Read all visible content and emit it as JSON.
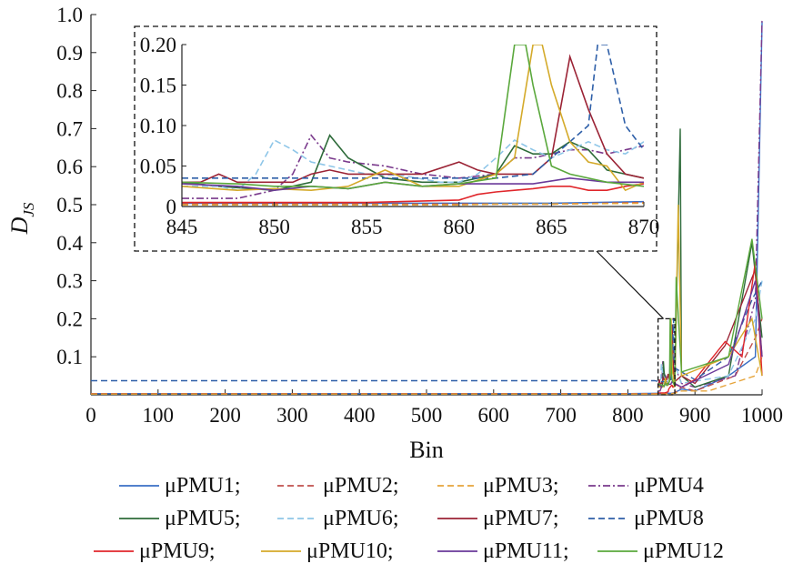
{
  "chart_data": {
    "type": "line",
    "title": "",
    "xlabel": "Bin",
    "ylabel": {
      "main": "D",
      "subscript": "JS"
    },
    "xlim": [
      0,
      1000
    ],
    "ylim": [
      0,
      1.0
    ],
    "xticks": [
      0,
      100,
      200,
      300,
      400,
      500,
      600,
      700,
      800,
      900,
      1000
    ],
    "yticks": [
      0.1,
      0.2,
      0.3,
      0.4,
      0.5,
      0.6,
      0.7,
      0.8,
      0.9,
      1.0
    ],
    "ytick_labels": [
      "0.1",
      "0.2",
      "0.3",
      "0.4",
      "0.5",
      "0.6",
      "0.7",
      "0.8",
      "0.9",
      "1.0"
    ],
    "grid": false,
    "legend_position": "bottom",
    "zoom_region": {
      "x": [
        845,
        870
      ],
      "y": [
        0,
        0.2
      ]
    },
    "series": [
      {
        "name": "μPMU1",
        "legend_label": "μPMU1;",
        "color": "#3a6fc4",
        "dash": "solid",
        "points": [
          [
            0,
            0.003
          ],
          [
            800,
            0.003
          ],
          [
            845,
            0.004
          ],
          [
            850,
            0.004
          ],
          [
            855,
            0.004
          ],
          [
            860,
            0.004
          ],
          [
            865,
            0.004
          ],
          [
            870,
            0.006
          ],
          [
            880,
            0.015
          ],
          [
            900,
            0.01
          ],
          [
            950,
            0.05
          ],
          [
            990,
            0.1
          ],
          [
            1000,
            0.98
          ]
        ]
      },
      {
        "name": "μPMU2",
        "legend_label": "μPMU2;",
        "color": "#c0504d",
        "dash": "dashed",
        "points": [
          [
            0,
            0.003
          ],
          [
            800,
            0.003
          ],
          [
            845,
            0.003
          ],
          [
            850,
            0.003
          ],
          [
            855,
            0.003
          ],
          [
            860,
            0.003
          ],
          [
            865,
            0.003
          ],
          [
            870,
            0.005
          ],
          [
            880,
            0.02
          ],
          [
            900,
            0.01
          ],
          [
            960,
            0.05
          ],
          [
            990,
            0.15
          ],
          [
            1000,
            0.2
          ]
        ]
      },
      {
        "name": "μPMU3",
        "legend_label": "μPMU3;",
        "color": "#e6a43a",
        "dash": "dashed",
        "points": [
          [
            0,
            0.002
          ],
          [
            800,
            0.002
          ],
          [
            845,
            0.002
          ],
          [
            855,
            0.002
          ],
          [
            860,
            0.002
          ],
          [
            862,
            0.003
          ],
          [
            865,
            0.003
          ],
          [
            870,
            0.004
          ],
          [
            880,
            0.01
          ],
          [
            920,
            0.01
          ],
          [
            990,
            0.05
          ],
          [
            1000,
            0.1
          ]
        ]
      },
      {
        "name": "μPMU4",
        "legend_label": "μPMU4",
        "color": "#7a3a8c",
        "dash": "dashdot",
        "points": [
          [
            845,
            0.01
          ],
          [
            848,
            0.01
          ],
          [
            850,
            0.02
          ],
          [
            851,
            0.04
          ],
          [
            852,
            0.088
          ],
          [
            853,
            0.06
          ],
          [
            854,
            0.055
          ],
          [
            856,
            0.05
          ],
          [
            858,
            0.04
          ],
          [
            860,
            0.035
          ],
          [
            862,
            0.04
          ],
          [
            863,
            0.06
          ],
          [
            864,
            0.06
          ],
          [
            865,
            0.065
          ],
          [
            866,
            0.07
          ],
          [
            867,
            0.07
          ],
          [
            868,
            0.065
          ],
          [
            869,
            0.07
          ],
          [
            870,
            0.075
          ],
          [
            880,
            0.03
          ],
          [
            900,
            0.02
          ],
          [
            960,
            0.05
          ],
          [
            990,
            0.25
          ],
          [
            1000,
            0.99
          ]
        ]
      },
      {
        "name": "μPMU5",
        "legend_label": "μPMU5;",
        "color": "#2e6b3a",
        "dash": "solid",
        "points": [
          [
            845,
            0.03
          ],
          [
            847,
            0.025
          ],
          [
            850,
            0.02
          ],
          [
            852,
            0.03
          ],
          [
            853,
            0.088
          ],
          [
            854,
            0.06
          ],
          [
            856,
            0.035
          ],
          [
            858,
            0.03
          ],
          [
            860,
            0.03
          ],
          [
            862,
            0.04
          ],
          [
            863,
            0.075
          ],
          [
            864,
            0.065
          ],
          [
            865,
            0.065
          ],
          [
            866,
            0.08
          ],
          [
            867,
            0.07
          ],
          [
            868,
            0.045
          ],
          [
            869,
            0.04
          ],
          [
            870,
            0.035
          ],
          [
            878,
            0.7
          ],
          [
            880,
            0.05
          ],
          [
            900,
            0.02
          ],
          [
            950,
            0.05
          ],
          [
            985,
            0.4
          ],
          [
            1000,
            0.15
          ]
        ]
      },
      {
        "name": "μPMU6",
        "legend_label": "μPMU6;",
        "color": "#8ec6e8",
        "dash": "dashed",
        "points": [
          [
            845,
            0.025
          ],
          [
            847,
            0.025
          ],
          [
            848,
            0.02
          ],
          [
            849,
            0.04
          ],
          [
            850,
            0.082
          ],
          [
            851,
            0.07
          ],
          [
            852,
            0.055
          ],
          [
            853,
            0.05
          ],
          [
            855,
            0.04
          ],
          [
            857,
            0.038
          ],
          [
            859,
            0.03
          ],
          [
            860,
            0.03
          ],
          [
            861,
            0.04
          ],
          [
            862,
            0.06
          ],
          [
            863,
            0.082
          ],
          [
            864,
            0.07
          ],
          [
            865,
            0.06
          ],
          [
            866,
            0.07
          ],
          [
            867,
            0.08
          ],
          [
            868,
            0.07
          ],
          [
            869,
            0.065
          ],
          [
            870,
            0.08
          ],
          [
            880,
            0.03
          ],
          [
            950,
            0.05
          ],
          [
            990,
            0.2
          ],
          [
            1000,
            0.3
          ]
        ]
      },
      {
        "name": "μPMU7",
        "legend_label": "μPMU7;",
        "color": "#9b2335",
        "dash": "solid",
        "points": [
          [
            845,
            0.03
          ],
          [
            846,
            0.03
          ],
          [
            847,
            0.04
          ],
          [
            848,
            0.03
          ],
          [
            851,
            0.03
          ],
          [
            852,
            0.04
          ],
          [
            853,
            0.045
          ],
          [
            854,
            0.04
          ],
          [
            856,
            0.04
          ],
          [
            858,
            0.04
          ],
          [
            860,
            0.055
          ],
          [
            861,
            0.045
          ],
          [
            862,
            0.04
          ],
          [
            863,
            0.04
          ],
          [
            864,
            0.04
          ],
          [
            865,
            0.06
          ],
          [
            866,
            0.185
          ],
          [
            867,
            0.12
          ],
          [
            868,
            0.065
          ],
          [
            869,
            0.04
          ],
          [
            870,
            0.035
          ],
          [
            880,
            0.05
          ],
          [
            900,
            0.03
          ],
          [
            945,
            0.13
          ],
          [
            990,
            0.33
          ],
          [
            1000,
            0.1
          ]
        ]
      },
      {
        "name": "μPMU8",
        "legend_label": "μPMU8",
        "color": "#2e5fa8",
        "dash": "dashed",
        "points": [
          [
            0,
            0.037
          ],
          [
            840,
            0.037
          ],
          [
            845,
            0.035
          ],
          [
            850,
            0.035
          ],
          [
            855,
            0.035
          ],
          [
            860,
            0.035
          ],
          [
            862,
            0.035
          ],
          [
            864,
            0.04
          ],
          [
            865,
            0.06
          ],
          [
            866,
            0.08
          ],
          [
            867,
            0.1
          ],
          [
            867.5,
            0.2
          ],
          [
            868,
            0.2
          ],
          [
            869,
            0.1
          ],
          [
            870,
            0.07
          ],
          [
            880,
            0.06
          ],
          [
            900,
            0.04
          ],
          [
            950,
            0.1
          ],
          [
            985,
            0.25
          ],
          [
            1000,
            0.3
          ]
        ]
      },
      {
        "name": "μPMU9",
        "legend_label": "μPMU9;",
        "color": "#e0262b",
        "dash": "solid",
        "points": [
          [
            845,
            0.005
          ],
          [
            850,
            0.005
          ],
          [
            855,
            0.005
          ],
          [
            860,
            0.008
          ],
          [
            861,
            0.015
          ],
          [
            862,
            0.018
          ],
          [
            863,
            0.02
          ],
          [
            864,
            0.022
          ],
          [
            865,
            0.025
          ],
          [
            866,
            0.025
          ],
          [
            867,
            0.02
          ],
          [
            868,
            0.02
          ],
          [
            869,
            0.025
          ],
          [
            870,
            0.028
          ],
          [
            880,
            0.02
          ],
          [
            900,
            0.04
          ],
          [
            945,
            0.14
          ],
          [
            970,
            0.1
          ],
          [
            990,
            0.35
          ],
          [
            1000,
            0.05
          ]
        ]
      },
      {
        "name": "μPMU10",
        "legend_label": "μPMU10;",
        "color": "#d4aa2a",
        "dash": "solid",
        "points": [
          [
            845,
            0.025
          ],
          [
            848,
            0.02
          ],
          [
            850,
            0.022
          ],
          [
            852,
            0.02
          ],
          [
            854,
            0.025
          ],
          [
            856,
            0.045
          ],
          [
            858,
            0.025
          ],
          [
            860,
            0.025
          ],
          [
            862,
            0.04
          ],
          [
            863,
            0.06
          ],
          [
            864,
            0.2
          ],
          [
            864.5,
            0.2
          ],
          [
            865,
            0.15
          ],
          [
            866,
            0.08
          ],
          [
            867,
            0.055
          ],
          [
            868,
            0.05
          ],
          [
            869,
            0.02
          ],
          [
            870,
            0.03
          ],
          [
            875,
            0.5
          ],
          [
            880,
            0.05
          ],
          [
            950,
            0.1
          ],
          [
            985,
            0.2
          ],
          [
            1000,
            0.05
          ]
        ]
      },
      {
        "name": "μPMU11",
        "legend_label": "μPMU11;",
        "color": "#6a3a9a",
        "dash": "solid",
        "points": [
          [
            845,
            0.028
          ],
          [
            848,
            0.025
          ],
          [
            850,
            0.02
          ],
          [
            852,
            0.025
          ],
          [
            854,
            0.022
          ],
          [
            856,
            0.03
          ],
          [
            858,
            0.025
          ],
          [
            860,
            0.028
          ],
          [
            862,
            0.028
          ],
          [
            864,
            0.028
          ],
          [
            866,
            0.035
          ],
          [
            868,
            0.03
          ],
          [
            870,
            0.03
          ],
          [
            880,
            0.02
          ],
          [
            950,
            0.08
          ],
          [
            990,
            0.3
          ],
          [
            1000,
            0.1
          ]
        ]
      },
      {
        "name": "μPMU12",
        "legend_label": "μPMU12",
        "color": "#5aa83c",
        "dash": "solid",
        "points": [
          [
            845,
            0.03
          ],
          [
            848,
            0.028
          ],
          [
            850,
            0.025
          ],
          [
            852,
            0.025
          ],
          [
            854,
            0.022
          ],
          [
            856,
            0.03
          ],
          [
            858,
            0.025
          ],
          [
            860,
            0.028
          ],
          [
            862,
            0.035
          ],
          [
            863,
            0.2
          ],
          [
            863.6,
            0.2
          ],
          [
            864,
            0.15
          ],
          [
            865,
            0.05
          ],
          [
            866,
            0.04
          ],
          [
            868,
            0.03
          ],
          [
            870,
            0.025
          ],
          [
            872,
            0.31
          ],
          [
            880,
            0.06
          ],
          [
            950,
            0.1
          ],
          [
            985,
            0.41
          ],
          [
            1000,
            0.2
          ]
        ]
      }
    ],
    "inset": {
      "xlim": [
        845,
        870
      ],
      "ylim": [
        0,
        0.2
      ],
      "xticks": [
        845,
        850,
        855,
        860,
        865,
        870
      ],
      "yticks": [
        0,
        0.05,
        0.1,
        0.15,
        0.2
      ],
      "ytick_labels": [
        "0",
        "0.05",
        "0.10",
        "0.15",
        "0.20"
      ]
    }
  }
}
